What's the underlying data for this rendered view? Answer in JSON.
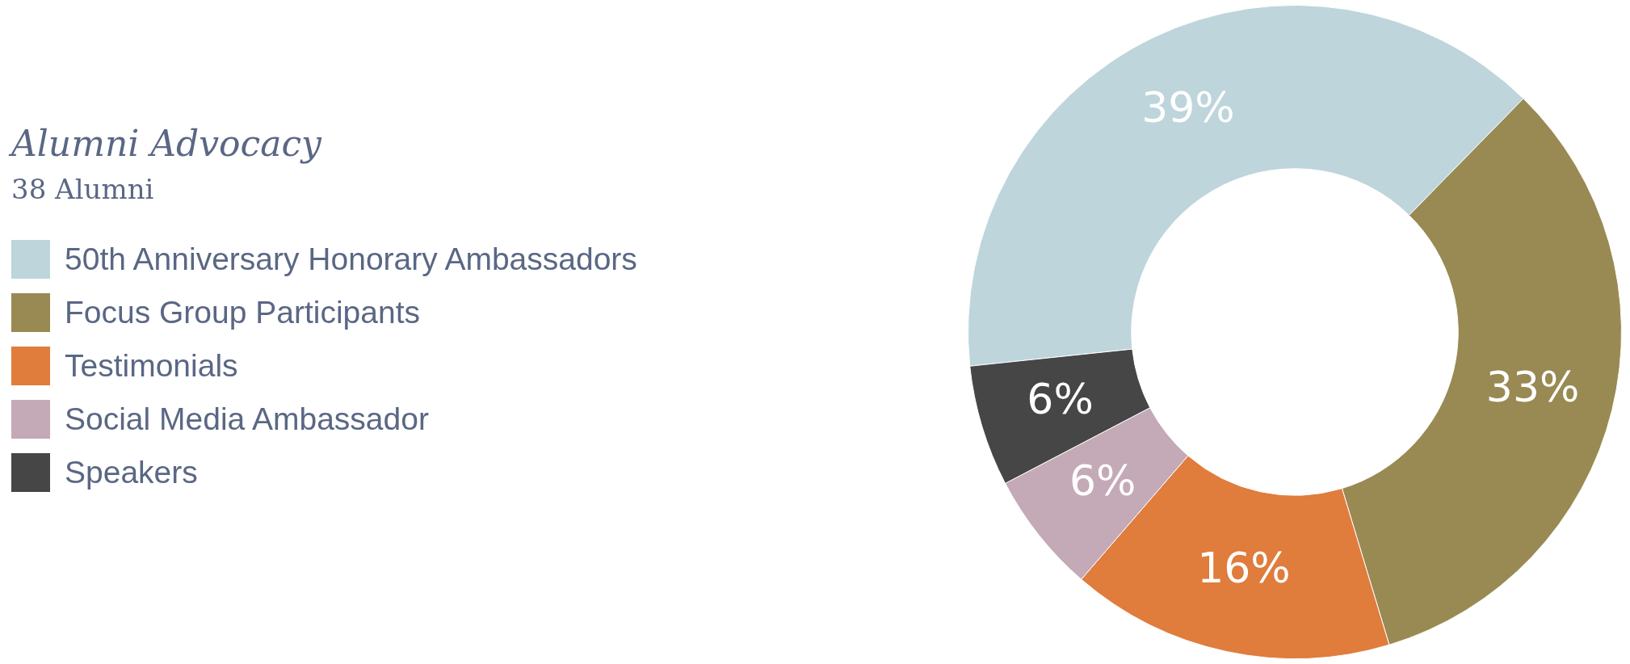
{
  "chart_data": {
    "type": "donut",
    "title": "Alumni Advocacy",
    "subtitle": "38 Alumni",
    "categories": [
      "50th Anniversary Honorary Ambassadors",
      "Focus Group Participants",
      "Testimonials",
      "Social Media Ambassador",
      "Speakers"
    ],
    "values": [
      39,
      33,
      16,
      6,
      6
    ],
    "colors": [
      "#bdd5db",
      "#998a53",
      "#e07c3c",
      "#c4a9b6",
      "#464646"
    ],
    "value_labels": [
      "39%",
      "33%",
      "16%",
      "6%",
      "6%"
    ],
    "legend": "left"
  }
}
